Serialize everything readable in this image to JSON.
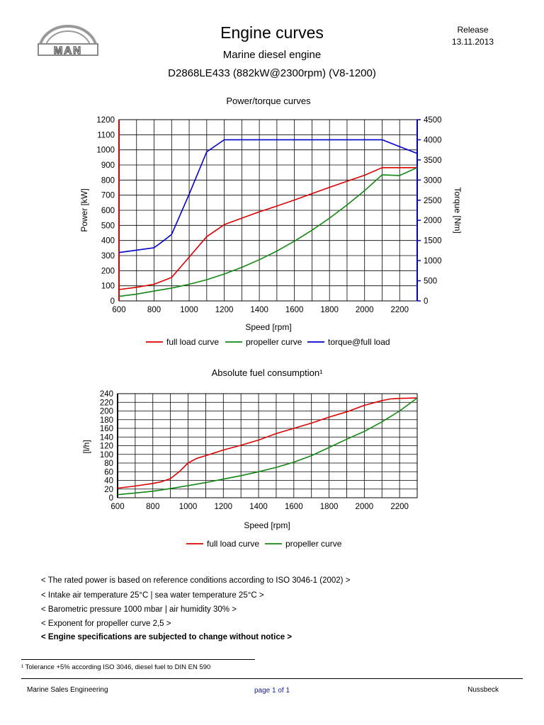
{
  "header": {
    "logo_text": "MAN",
    "title": "Engine curves",
    "subtitle": "Marine diesel engine",
    "model": "D2868LE433 (882kW@2300rpm) (V8-1200)",
    "release_label": "Release",
    "release_date": "13.11.2013"
  },
  "colors": {
    "full_load": "#dd0000",
    "propeller": "#118811",
    "torque": "#0000cc",
    "grid": "#000000"
  },
  "chart_data": [
    {
      "type": "line",
      "title": "Power/torque curves",
      "xlabel": "Speed [rpm]",
      "ylabel": "Power [kW]",
      "y2label": "Torque [Nm]",
      "xlim": [
        600,
        2300
      ],
      "ylim": [
        0,
        1200
      ],
      "y2lim": [
        0,
        4500
      ],
      "xticks": [
        600,
        800,
        1000,
        1200,
        1400,
        1600,
        1800,
        2000,
        2200
      ],
      "yticks": [
        0,
        100,
        200,
        300,
        400,
        500,
        600,
        700,
        800,
        900,
        1000,
        1100,
        1200
      ],
      "y2ticks": [
        0,
        500,
        1000,
        1500,
        2000,
        2500,
        3000,
        3500,
        4000,
        4500
      ],
      "grid": true,
      "legend_position": "bottom",
      "series": [
        {
          "name": "full load curve",
          "axis": "left",
          "color": "#dd0000",
          "x": [
            600,
            700,
            800,
            900,
            1000,
            1100,
            1200,
            1300,
            1400,
            1500,
            1600,
            1700,
            1800,
            1900,
            2000,
            2100,
            2200,
            2300
          ],
          "y": [
            75,
            90,
            110,
            155,
            290,
            425,
            505,
            548,
            590,
            628,
            668,
            710,
            752,
            792,
            832,
            882,
            882,
            882
          ]
        },
        {
          "name": "propeller curve",
          "axis": "left",
          "color": "#118811",
          "x": [
            600,
            700,
            800,
            900,
            1000,
            1100,
            1200,
            1300,
            1400,
            1500,
            1600,
            1700,
            1800,
            1900,
            2000,
            2100,
            2200,
            2300
          ],
          "y": [
            30,
            45,
            65,
            85,
            110,
            140,
            178,
            222,
            273,
            330,
            395,
            468,
            548,
            635,
            730,
            835,
            830,
            882
          ]
        },
        {
          "name": "torque@full load",
          "axis": "right",
          "color": "#0000cc",
          "x": [
            600,
            700,
            800,
            850,
            900,
            1000,
            1100,
            1200,
            1300,
            1400,
            1500,
            1600,
            1700,
            1800,
            1900,
            2000,
            2100,
            2200,
            2300
          ],
          "y": [
            1200,
            1260,
            1320,
            1480,
            1650,
            2650,
            3700,
            4000,
            4000,
            4000,
            4000,
            4000,
            4000,
            4000,
            4000,
            4000,
            4000,
            3830,
            3660
          ]
        }
      ]
    },
    {
      "type": "line",
      "title": "Absolute fuel consumption¹",
      "xlabel": "Speed [rpm]",
      "ylabel": "[l/h]",
      "xlim": [
        600,
        2300
      ],
      "ylim": [
        0,
        240
      ],
      "xticks": [
        600,
        800,
        1000,
        1200,
        1400,
        1600,
        1800,
        2000,
        2200
      ],
      "yticks": [
        0,
        20,
        40,
        60,
        80,
        100,
        120,
        140,
        160,
        180,
        200,
        220,
        240
      ],
      "grid": true,
      "legend_position": "bottom",
      "series": [
        {
          "name": "full load curve",
          "color": "#dd0000",
          "x": [
            600,
            700,
            800,
            850,
            900,
            950,
            1000,
            1050,
            1100,
            1200,
            1300,
            1400,
            1500,
            1600,
            1700,
            1800,
            1900,
            2000,
            2100,
            2150,
            2200,
            2300
          ],
          "y": [
            22,
            27,
            33,
            37,
            44,
            60,
            80,
            91,
            97,
            110,
            121,
            133,
            148,
            160,
            172,
            186,
            198,
            213,
            224,
            228,
            229,
            230
          ]
        },
        {
          "name": "propeller curve",
          "color": "#118811",
          "x": [
            600,
            700,
            800,
            900,
            1000,
            1100,
            1200,
            1300,
            1400,
            1500,
            1600,
            1700,
            1800,
            1900,
            2000,
            2100,
            2200,
            2300
          ],
          "y": [
            7,
            11,
            15,
            21,
            28,
            35,
            43,
            51,
            60,
            70,
            82,
            97,
            116,
            135,
            153,
            175,
            200,
            230
          ]
        }
      ]
    }
  ],
  "notes": [
    "< The rated power is based on reference conditions according to ISO 3046-1 (2002) >",
    "< Intake air temperature 25°C | sea water temperature 25°C >",
    "< Barometric pressure 1000 mbar | air humidity 30% >",
    "< Exponent for propeller curve 2,5 >",
    "< Engine specifications are subjected to change without notice >"
  ],
  "footnote": "¹ Tolerance +5% according ISO 3046, diesel fuel to DIN EN 590",
  "footer": {
    "left": "Marine Sales Engineering",
    "center": "page 1 of 1",
    "right": "Nussbeck"
  }
}
